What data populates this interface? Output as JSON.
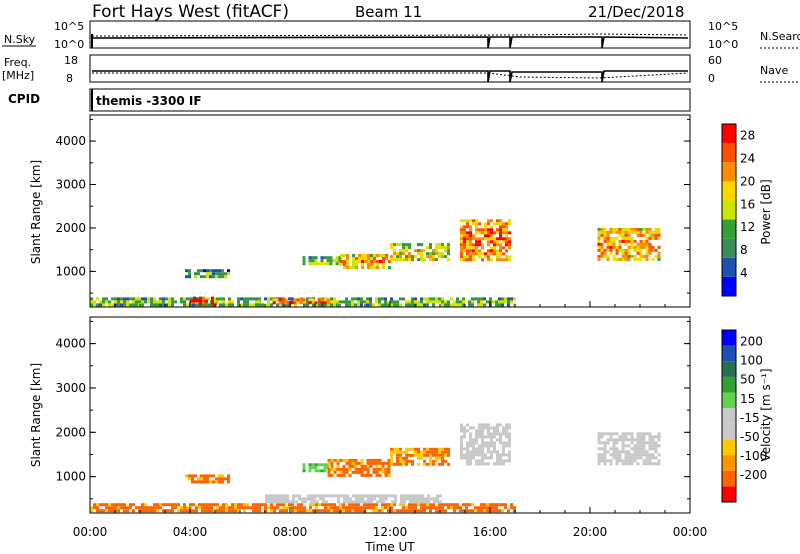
{
  "header": {
    "station": "Fort Hays West (fitACF)",
    "beam": "Beam 11",
    "date": "21/Dec/2018"
  },
  "top_panels": {
    "nsky_label": "N.Sky",
    "nsky_ticks": [
      "10^5",
      "10^0"
    ],
    "nsearch_label": "N.Search",
    "nsearch_ticks": [
      "10^5",
      "10^0"
    ],
    "freq_label": "Freq.",
    "freq_unit": "[MHz]",
    "freq_ticks": [
      "18",
      "8"
    ],
    "nave_label": "Nave",
    "nave_ticks": [
      "60",
      "0"
    ],
    "cpid_label": "CPID",
    "cpid_value": "themis -3300 IF"
  },
  "x_axis": {
    "ticks": [
      "00:00",
      "04:00",
      "08:00",
      "12:00",
      "16:00",
      "20:00",
      "00:00"
    ],
    "label": "Time UT"
  },
  "colors": {
    "power_scale": [
      "#0000ff",
      "#1e50b4",
      "#3c8c5a",
      "#32a032",
      "#c8e600",
      "#ffd700",
      "#ff8c00",
      "#ff5000",
      "#ff0000"
    ],
    "velocity_scale": [
      "#ff0000",
      "#ff6400",
      "#ff9600",
      "#ffc800",
      "#c8c8c8",
      "#c8c8c8",
      "#64d250",
      "#32a032",
      "#286e50",
      "#1e50b4",
      "#0000ff"
    ],
    "ground_scatter": "#c8c8c8"
  },
  "chart_data": [
    {
      "type": "heatmap",
      "panel": "power",
      "ylabel": "Slant Range [km]",
      "yticks": [
        "1000",
        "2000",
        "3000",
        "4000"
      ],
      "ylim": [
        180,
        4600
      ],
      "xlim": [
        0,
        24
      ],
      "colorbar_label": "Power [dB]",
      "colorbar_ticks": [
        "4",
        "8",
        "12",
        "16",
        "20",
        "24",
        "28"
      ],
      "colorbar_range": [
        0,
        30
      ],
      "echo_regions": [
        {
          "t0": 0.0,
          "t1": 17.0,
          "r0": 250,
          "r1": 400,
          "power": 10
        },
        {
          "t0": 4.0,
          "t1": 5.0,
          "r0": 220,
          "r1": 420,
          "power": 28
        },
        {
          "t0": 7.3,
          "t1": 9.5,
          "r0": 260,
          "r1": 380,
          "power": 22
        },
        {
          "t0": 3.8,
          "t1": 5.5,
          "r0": 850,
          "r1": 1050,
          "power": 8
        },
        {
          "t0": 8.5,
          "t1": 10.0,
          "r0": 1150,
          "r1": 1350,
          "power": 10
        },
        {
          "t0": 10.0,
          "t1": 12.0,
          "r0": 1100,
          "r1": 1400,
          "power": 18
        },
        {
          "t0": 12.0,
          "t1": 14.3,
          "r0": 1250,
          "r1": 1650,
          "power": 14
        },
        {
          "t0": 14.8,
          "t1": 16.8,
          "r0": 1300,
          "r1": 2200,
          "power": 20
        },
        {
          "t0": 20.3,
          "t1": 22.8,
          "r0": 1300,
          "r1": 2000,
          "power": 18
        }
      ]
    },
    {
      "type": "heatmap",
      "panel": "velocity",
      "ylabel": "Slant Range [km]",
      "yticks": [
        "1000",
        "2000",
        "3000",
        "4000"
      ],
      "ylim": [
        180,
        4600
      ],
      "xlim": [
        0,
        24
      ],
      "colorbar_label": "Velocity [m s⁻¹]",
      "colorbar_ticks": [
        "-200",
        "-100",
        "-50",
        "-15",
        "15",
        "50",
        "100",
        "200"
      ],
      "echo_regions": [
        {
          "t0": 0.0,
          "t1": 17.0,
          "r0": 250,
          "r1": 400,
          "velocity": -60
        },
        {
          "t0": 7.0,
          "t1": 14.0,
          "r0": 400,
          "r1": 600,
          "velocity": 0
        },
        {
          "t0": 3.8,
          "t1": 5.5,
          "r0": 850,
          "r1": 1050,
          "velocity": -60
        },
        {
          "t0": 8.5,
          "t1": 9.5,
          "r0": 1100,
          "r1": 1300,
          "velocity": 40
        },
        {
          "t0": 9.5,
          "t1": 12.0,
          "r0": 1050,
          "r1": 1400,
          "velocity": -60
        },
        {
          "t0": 12.0,
          "t1": 14.3,
          "r0": 1250,
          "r1": 1650,
          "velocity": -50
        },
        {
          "t0": 14.8,
          "t1": 16.8,
          "r0": 1300,
          "r1": 2200,
          "velocity": 0
        },
        {
          "t0": 20.3,
          "t1": 22.8,
          "r0": 1300,
          "r1": 2000,
          "velocity": 0
        }
      ]
    }
  ]
}
